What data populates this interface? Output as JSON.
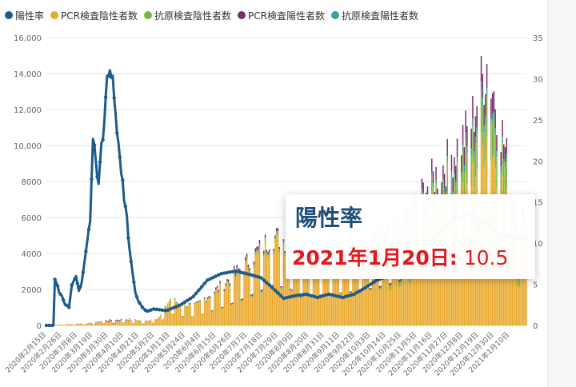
{
  "legend": [
    {
      "label": "陽性率",
      "color": "#1e5a8a"
    },
    {
      "label": "PCR検査陰性者数",
      "color": "#e9a92a"
    },
    {
      "label": "抗原検査陰性者数",
      "color": "#7cb342"
    },
    {
      "label": "PCR検査陽性者数",
      "color": "#7b2d6b"
    },
    {
      "label": "抗原検査陽性者数",
      "color": "#3a9f9f"
    }
  ],
  "tooltip": {
    "title": "陽性率",
    "date_label": "2021年1月20日:",
    "value": "10.5"
  },
  "chart_data": {
    "type": "bar+line",
    "title": "",
    "x_ticks": [
      "2020年2月15日",
      "2020年2月26日",
      "2020年3月8日",
      "2020年3月19日",
      "2020年3月30日",
      "2020年4月10日",
      "2020年4月21日",
      "2020年5月2日",
      "2020年5月13日",
      "2020年5月24日",
      "2020年6月4日",
      "2020年6月15日",
      "2020年6月26日",
      "2020年7月7日",
      "2020年7月18日",
      "2020年7月29日",
      "2020年8月9日",
      "2020年8月20日",
      "2020年8月31日",
      "2020年9月11日",
      "2020年9月22日",
      "2020年10月3日",
      "2020年10月14日",
      "2020年10月25日",
      "2020年11月5日",
      "2020年11月16日",
      "2020年11月27日",
      "2020年12月8日",
      "2020年12月19日",
      "2020年12月30日",
      "2021年1月10日"
    ],
    "y_left": {
      "min": 0,
      "max": 16000,
      "ticks": [
        "0",
        "2000",
        "4000",
        "6000",
        "8000",
        "10,000",
        "12,000",
        "14,000",
        "16,000"
      ]
    },
    "y_right": {
      "min": 0,
      "max": 35,
      "ticks": [
        "0",
        "5",
        "10",
        "15",
        "20",
        "25",
        "30",
        "35"
      ]
    },
    "stack_keyframes": [
      {
        "day": 0,
        "total": 0
      },
      {
        "day": 12,
        "total": 60
      },
      {
        "day": 30,
        "total": 120
      },
      {
        "day": 45,
        "total": 300
      },
      {
        "day": 58,
        "total": 350
      },
      {
        "day": 70,
        "total": 250
      },
      {
        "day": 80,
        "total": 450
      },
      {
        "day": 88,
        "total": 1500
      },
      {
        "day": 95,
        "total": 1200
      },
      {
        "day": 105,
        "total": 1100
      },
      {
        "day": 115,
        "total": 1700
      },
      {
        "day": 125,
        "total": 2300
      },
      {
        "day": 140,
        "total": 3400
      },
      {
        "day": 160,
        "total": 5000
      },
      {
        "day": 172,
        "total": 4700
      },
      {
        "day": 180,
        "total": 3600
      },
      {
        "day": 200,
        "total": 3900
      },
      {
        "day": 220,
        "total": 4300
      },
      {
        "day": 240,
        "total": 5000
      },
      {
        "day": 255,
        "total": 6000
      },
      {
        "day": 270,
        "total": 7800
      },
      {
        "day": 285,
        "total": 9200
      },
      {
        "day": 300,
        "total": 11000
      },
      {
        "day": 312,
        "total": 14600
      },
      {
        "day": 320,
        "total": 12000
      },
      {
        "day": 330,
        "total": 7500
      },
      {
        "day": 340,
        "total": 5500
      }
    ],
    "positivity_keyframes": [
      {
        "day": 0,
        "value": 0
      },
      {
        "day": 5,
        "value": 0
      },
      {
        "day": 6,
        "value": 5.6
      },
      {
        "day": 8,
        "value": 4.8
      },
      {
        "day": 9,
        "value": 4.0
      },
      {
        "day": 11,
        "value": 3.6
      },
      {
        "day": 13,
        "value": 2.6
      },
      {
        "day": 16,
        "value": 2.2
      },
      {
        "day": 18,
        "value": 4.9
      },
      {
        "day": 21,
        "value": 6.0
      },
      {
        "day": 23,
        "value": 4.2
      },
      {
        "day": 25,
        "value": 5.2
      },
      {
        "day": 28,
        "value": 9.0
      },
      {
        "day": 31,
        "value": 13.0
      },
      {
        "day": 33,
        "value": 23.1
      },
      {
        "day": 35,
        "value": 20.0
      },
      {
        "day": 37,
        "value": 17.0
      },
      {
        "day": 39,
        "value": 21.5
      },
      {
        "day": 41,
        "value": 24.0
      },
      {
        "day": 43,
        "value": 30.5
      },
      {
        "day": 45,
        "value": 31.5
      },
      {
        "day": 47,
        "value": 30.0
      },
      {
        "day": 49,
        "value": 25.0
      },
      {
        "day": 51,
        "value": 22.5
      },
      {
        "day": 53,
        "value": 19.0
      },
      {
        "day": 55,
        "value": 15.0
      },
      {
        "day": 57,
        "value": 13.0
      },
      {
        "day": 59,
        "value": 9.0
      },
      {
        "day": 61,
        "value": 6.5
      },
      {
        "day": 63,
        "value": 4.0
      },
      {
        "day": 65,
        "value": 3.0
      },
      {
        "day": 68,
        "value": 2.2
      },
      {
        "day": 71,
        "value": 1.7
      },
      {
        "day": 76,
        "value": 2.0
      },
      {
        "day": 85,
        "value": 1.8
      },
      {
        "day": 95,
        "value": 2.5
      },
      {
        "day": 104,
        "value": 3.5
      },
      {
        "day": 114,
        "value": 5.5
      },
      {
        "day": 124,
        "value": 6.3
      },
      {
        "day": 134,
        "value": 6.6
      },
      {
        "day": 144,
        "value": 6.2
      },
      {
        "day": 152,
        "value": 5.8
      },
      {
        "day": 160,
        "value": 4.6
      },
      {
        "day": 168,
        "value": 3.3
      },
      {
        "day": 176,
        "value": 3.6
      },
      {
        "day": 184,
        "value": 3.8
      },
      {
        "day": 192,
        "value": 3.4
      },
      {
        "day": 200,
        "value": 3.8
      },
      {
        "day": 210,
        "value": 3.4
      },
      {
        "day": 218,
        "value": 3.8
      },
      {
        "day": 226,
        "value": 4.6
      },
      {
        "day": 234,
        "value": 5.5
      },
      {
        "day": 242,
        "value": 6.0
      },
      {
        "day": 252,
        "value": 7.0
      },
      {
        "day": 262,
        "value": 8.0
      },
      {
        "day": 272,
        "value": 10.0
      },
      {
        "day": 282,
        "value": 12.0
      },
      {
        "day": 290,
        "value": 13.0
      },
      {
        "day": 298,
        "value": 13.5
      },
      {
        "day": 306,
        "value": 13.0
      },
      {
        "day": 314,
        "value": 12.0
      },
      {
        "day": 322,
        "value": 11.0
      },
      {
        "day": 340,
        "value": 10.5
      }
    ],
    "highlight": {
      "date": "2021年1月20日",
      "positivity": 10.5
    }
  }
}
